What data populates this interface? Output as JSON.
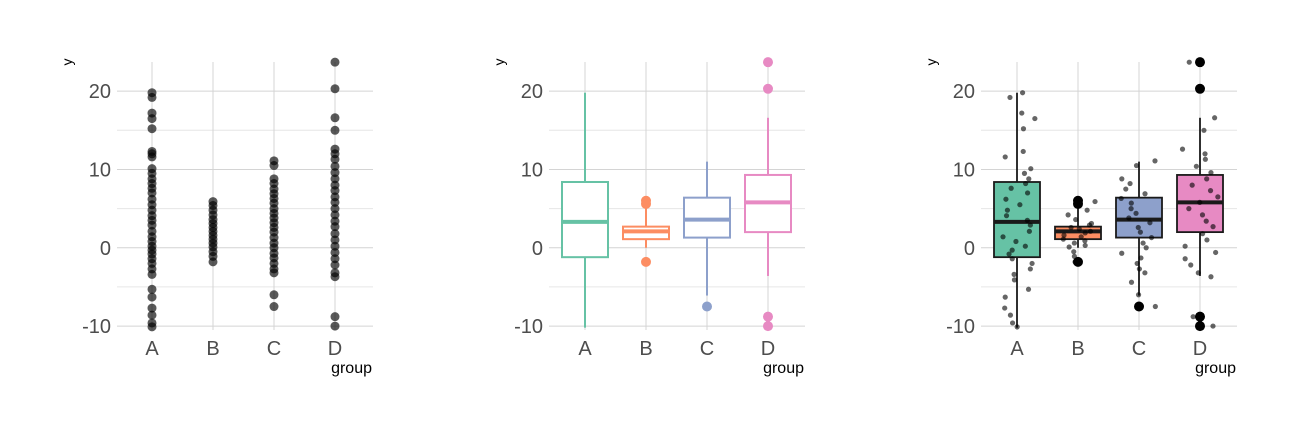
{
  "chart_data": [
    {
      "type": "scatter",
      "variant": "strip",
      "xlabel": "group",
      "ylabel": "y",
      "categories": [
        "A",
        "B",
        "C",
        "D"
      ],
      "ylim": [
        -10.5,
        25
      ],
      "yticks": [
        -10,
        0,
        10,
        20
      ],
      "grid": true,
      "point_color": "#000000",
      "points": {
        "A": [
          19.8,
          19.2,
          17.2,
          16.5,
          15.2,
          12.3,
          12.0,
          11.6,
          10.1,
          9.5,
          8.8,
          8.2,
          7.6,
          7.0,
          6.2,
          5.5,
          4.8,
          4.1,
          3.5,
          2.9,
          2.1,
          1.4,
          0.8,
          0.2,
          -0.3,
          -0.8,
          -1.4,
          -2.0,
          -2.7,
          -3.4,
          -5.3,
          -6.3,
          -7.7,
          -8.6,
          -9.6,
          -10.1
        ],
        "B": [
          5.9,
          5.4,
          4.8,
          4.2,
          3.6,
          3.1,
          2.6,
          2.1,
          1.6,
          1.1,
          0.6,
          0.1,
          -0.5,
          -1.1,
          -1.8
        ],
        "C": [
          11.1,
          10.5,
          8.8,
          8.2,
          7.5,
          6.9,
          6.3,
          5.7,
          5.0,
          4.4,
          3.8,
          3.2,
          2.6,
          2.0,
          1.3,
          0.6,
          0.0,
          -0.7,
          -1.3,
          -2.0,
          -2.7,
          -3.2,
          -6.0,
          -7.5
        ],
        "D": [
          23.7,
          20.3,
          16.6,
          15.0,
          12.6,
          12.0,
          11.3,
          10.4,
          9.6,
          8.8,
          8.0,
          7.3,
          6.5,
          5.8,
          5.0,
          4.2,
          3.4,
          2.7,
          1.8,
          1.0,
          0.2,
          -0.6,
          -1.4,
          -2.2,
          -3.2,
          -3.7,
          -8.8,
          -10.0
        ]
      }
    },
    {
      "type": "box",
      "xlabel": "group",
      "ylabel": "y",
      "categories": [
        "A",
        "B",
        "C",
        "D"
      ],
      "ylim": [
        -10.5,
        25
      ],
      "yticks": [
        -10,
        0,
        10,
        20
      ],
      "grid": true,
      "colors": [
        "#66c2a5",
        "#fc8d62",
        "#8da0cb",
        "#e78ac3"
      ],
      "boxes": [
        {
          "q1": -1.2,
          "median": 3.3,
          "q3": 8.4,
          "low": -10.2,
          "high": 19.8,
          "outliers": []
        },
        {
          "q1": 1.1,
          "median": 2.1,
          "q3": 2.7,
          "low": 0.0,
          "high": 5.3,
          "outliers": [
            6.0,
            5.6,
            -1.8
          ]
        },
        {
          "q1": 1.3,
          "median": 3.6,
          "q3": 6.4,
          "low": -6.1,
          "high": 11.0,
          "outliers": [
            -7.5
          ]
        },
        {
          "q1": 2.0,
          "median": 5.8,
          "q3": 9.3,
          "low": -3.6,
          "high": 16.6,
          "outliers": [
            23.7,
            20.3,
            -8.8,
            -10.0
          ]
        }
      ]
    },
    {
      "type": "box",
      "variant": "box+jitter",
      "xlabel": "group",
      "ylabel": "y",
      "categories": [
        "A",
        "B",
        "C",
        "D"
      ],
      "ylim": [
        -10.5,
        25
      ],
      "yticks": [
        -10,
        0,
        10,
        20
      ],
      "grid": true,
      "colors": [
        "#66c2a5",
        "#fc8d62",
        "#8da0cb",
        "#e78ac3"
      ],
      "boxes": [
        {
          "q1": -1.2,
          "median": 3.3,
          "q3": 8.4,
          "low": -10.2,
          "high": 19.8,
          "outliers": []
        },
        {
          "q1": 1.1,
          "median": 2.1,
          "q3": 2.7,
          "low": 0.0,
          "high": 5.3,
          "outliers": [
            6.0,
            5.6,
            -1.8
          ]
        },
        {
          "q1": 1.3,
          "median": 3.6,
          "q3": 6.4,
          "low": -6.1,
          "high": 11.0,
          "outliers": [
            -7.5
          ]
        },
        {
          "q1": 2.0,
          "median": 5.8,
          "q3": 9.3,
          "low": -3.6,
          "high": 16.6,
          "outliers": [
            23.7,
            20.3,
            -8.8,
            -10.0
          ]
        }
      ],
      "jitter_points": {
        "A": [
          19.8,
          19.2,
          17.2,
          16.5,
          15.2,
          12.3,
          11.6,
          10.1,
          9.5,
          8.8,
          8.2,
          7.6,
          7.0,
          6.2,
          5.5,
          4.8,
          4.1,
          3.5,
          2.9,
          2.1,
          1.4,
          0.8,
          0.2,
          -0.3,
          -0.8,
          -1.4,
          -2.0,
          -2.7,
          -3.4,
          -4.1,
          -5.3,
          -6.3,
          -7.7,
          -8.6,
          -9.6,
          -10.1
        ],
        "B": [
          5.9,
          5.4,
          4.8,
          4.2,
          3.6,
          3.1,
          2.9,
          2.6,
          2.4,
          2.1,
          1.9,
          1.6,
          1.4,
          1.1,
          0.9,
          0.6,
          0.3,
          0.1,
          -0.5,
          -1.1,
          -1.8
        ],
        "C": [
          11.1,
          10.5,
          8.8,
          8.2,
          7.5,
          6.9,
          6.3,
          5.7,
          5.0,
          4.4,
          3.8,
          3.2,
          2.6,
          2.0,
          1.3,
          0.6,
          0.0,
          -0.7,
          -1.3,
          -2.0,
          -2.7,
          -3.2,
          -4.4,
          -6.0,
          -7.5
        ],
        "D": [
          23.7,
          20.3,
          16.6,
          15.0,
          12.6,
          12.0,
          11.3,
          10.4,
          9.6,
          8.8,
          8.0,
          7.3,
          6.5,
          5.8,
          5.0,
          4.2,
          3.4,
          2.7,
          1.8,
          1.0,
          0.2,
          -0.6,
          -1.4,
          -2.2,
          -3.2,
          -3.7,
          -8.8,
          -10.0
        ]
      }
    }
  ]
}
